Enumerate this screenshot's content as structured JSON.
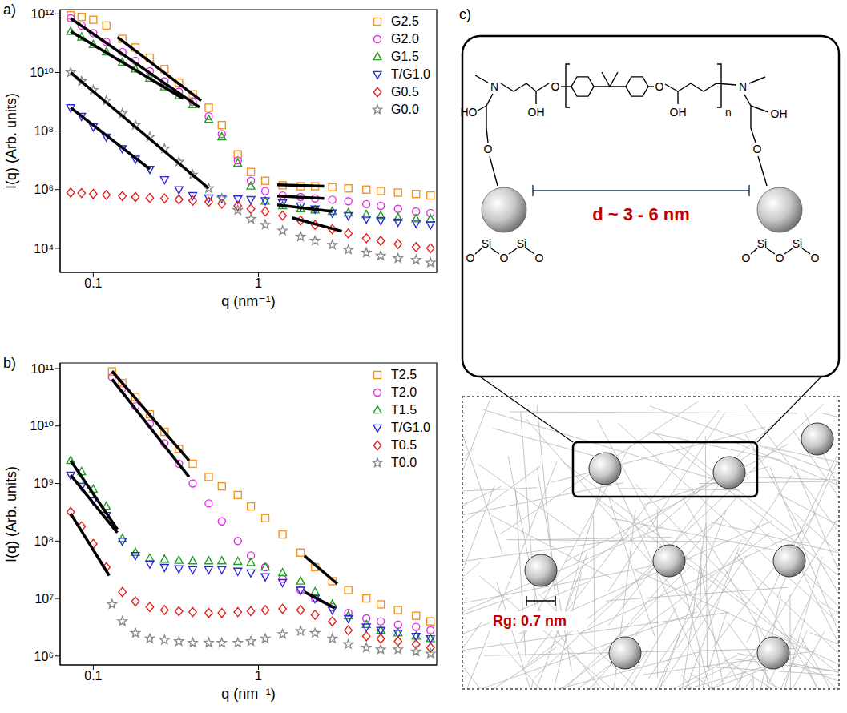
{
  "chart_data": [
    {
      "type": "scatter",
      "label": "a)",
      "x_label": "q (nm⁻¹)",
      "y_label": "I(q) (Arb. units)",
      "log": true,
      "grid": false,
      "legend": "top right",
      "xlim": [
        0.063,
        12
      ],
      "xticks": [
        0.1,
        1
      ],
      "ylim": [
        1500,
        1400000000000.0
      ],
      "yticks": [
        {
          "value": 10000,
          "label": "10⁴"
        },
        {
          "value": 1000000.0,
          "label": "10⁶"
        },
        {
          "value": 100000000.0,
          "label": "10⁸"
        },
        {
          "value": 10000000000.0,
          "label": "10¹⁰"
        },
        {
          "value": 1000000000000.0,
          "label": "10¹²"
        }
      ],
      "series": [
        {
          "name": "G2.5",
          "color": "#f7931e",
          "marker": "square",
          "x": [
            0.073,
            0.085,
            0.1,
            0.12,
            0.15,
            0.18,
            0.22,
            0.27,
            0.33,
            0.4,
            0.5,
            0.6,
            0.75,
            0.9,
            1.1,
            1.4,
            1.8,
            2.2,
            2.8,
            3.5,
            4.5,
            5.5,
            7,
            9,
            11
          ],
          "values": [
            890000000000.0,
            790000000000.0,
            630000000000.0,
            400000000000.0,
            140000000000.0,
            71000000000.0,
            32000000000.0,
            13000000000.0,
            4500000000.0,
            1800000000.0,
            630000000.0,
            160000000.0,
            16000000.0,
            4000000.0,
            2000000.0,
            1400000.0,
            1300000.0,
            1300000.0,
            1200000.0,
            1100000.0,
            1000000.0,
            890000.0,
            790000.0,
            710000.0,
            630000.0
          ],
          "fits": [
            {
              "x": [
                0.14,
                0.45
              ],
              "values": [
                160000000000.0,
                1100000000.0
              ]
            },
            {
              "x": [
                1.3,
                2.5
              ],
              "values": [
                1450000.0,
                1300000.0
              ]
            }
          ]
        },
        {
          "name": "G2.0",
          "color": "#e02ee0",
          "marker": "circle",
          "x": [
            0.073,
            0.085,
            0.1,
            0.12,
            0.15,
            0.18,
            0.22,
            0.27,
            0.33,
            0.4,
            0.5,
            0.6,
            0.75,
            0.9,
            1.1,
            1.4,
            1.8,
            2.2,
            2.8,
            3.5,
            4.5,
            5.5,
            7,
            9,
            11
          ],
          "values": [
            710000000000.0,
            400000000000.0,
            220000000000.0,
            110000000000.0,
            50000000000.0,
            25000000000.0,
            11000000000.0,
            5000000000.0,
            2200000000.0,
            1000000000.0,
            320000000.0,
            79000000.0,
            10000000.0,
            2000000.0,
            890000.0,
            630000.0,
            560000.0,
            500000.0,
            450000.0,
            400000.0,
            320000.0,
            280000.0,
            220000.0,
            180000.0,
            160000.0
          ],
          "fits": [
            {
              "x": [
                0.073,
                0.44
              ],
              "values": [
                700000000000.0,
                650000000.0
              ]
            },
            {
              "x": [
                1.3,
                2.5
              ],
              "values": [
                600000.0,
                500000.0
              ]
            }
          ]
        },
        {
          "name": "G1.5",
          "color": "#1f9e1f",
          "marker": "triangle",
          "x": [
            0.073,
            0.085,
            0.1,
            0.12,
            0.15,
            0.18,
            0.22,
            0.27,
            0.33,
            0.4,
            0.5,
            0.6,
            0.75,
            0.9,
            1.1,
            1.4,
            1.8,
            2.2,
            2.8,
            3.5,
            4.5,
            5.5,
            7,
            9,
            11
          ],
          "values": [
            250000000000.0,
            160000000000.0,
            89000000000.0,
            50000000000.0,
            22000000000.0,
            13000000000.0,
            6300000000.0,
            3200000000.0,
            1600000000.0,
            790000000.0,
            250000000.0,
            63000000.0,
            7900000.0,
            1300000.0,
            400000.0,
            280000.0,
            220000.0,
            200000.0,
            180000.0,
            160000.0,
            140000.0,
            130000.0,
            110000.0,
            100000.0,
            100000.0
          ],
          "fits": [
            {
              "x": [
                0.073,
                0.35
              ],
              "values": [
                250000000000.0,
                1300000000.0
              ]
            },
            {
              "x": [
                1.3,
                2.8
              ],
              "values": [
                300000.0,
                180000.0
              ]
            }
          ]
        },
        {
          "name": "T/G1.0",
          "color": "#2b2bd9",
          "marker": "triangle-down",
          "x": [
            0.073,
            0.085,
            0.1,
            0.12,
            0.15,
            0.18,
            0.22,
            0.27,
            0.33,
            0.4,
            0.5,
            0.6,
            0.75,
            0.9,
            1.1,
            1.4,
            1.8,
            2.2,
            2.8,
            3.5,
            4.5,
            5.5,
            7,
            9,
            11
          ],
          "values": [
            630000000.0,
            320000000.0,
            140000000.0,
            63000000.0,
            25000000.0,
            11000000.0,
            5000000.0,
            2200000.0,
            1000000.0,
            630000.0,
            520000.0,
            500000.0,
            480000.0,
            460000.0,
            420000.0,
            350000.0,
            280000.0,
            220000.0,
            160000.0,
            130000.0,
            100000.0,
            89000.0,
            79000.0,
            71000.0,
            63000.0
          ],
          "fits": [
            {
              "x": [
                0.073,
                0.22
              ],
              "values": [
                630000000.0,
                5000000.0
              ]
            }
          ]
        },
        {
          "name": "G0.5",
          "color": "#e3211c",
          "marker": "diamond",
          "x": [
            0.073,
            0.085,
            0.1,
            0.12,
            0.15,
            0.18,
            0.22,
            0.27,
            0.33,
            0.4,
            0.5,
            0.6,
            0.75,
            0.9,
            1.1,
            1.4,
            1.8,
            2.2,
            2.8,
            3.5,
            4.5,
            5.5,
            7,
            9,
            11
          ],
          "values": [
            790000.0,
            760000.0,
            710000.0,
            660000.0,
            600000.0,
            560000.0,
            520000.0,
            500000.0,
            460000.0,
            420000.0,
            380000.0,
            330000.0,
            280000.0,
            220000.0,
            180000.0,
            130000.0,
            89000.0,
            63000.0,
            45000.0,
            32000.0,
            22000.0,
            18000.0,
            14000.0,
            11000.0,
            10000.0
          ],
          "fits": [
            {
              "x": [
                1.6,
                3.2
              ],
              "values": [
                110000.0,
                38000.0
              ]
            }
          ]
        },
        {
          "name": "G0.0",
          "color": "#8a8a8a",
          "marker": "star",
          "x": [
            0.073,
            0.085,
            0.1,
            0.12,
            0.15,
            0.18,
            0.22,
            0.27,
            0.33,
            0.4,
            0.5,
            0.6,
            0.75,
            0.9,
            1.1,
            1.4,
            1.8,
            2.2,
            2.8,
            3.5,
            4.5,
            5.5,
            7,
            9,
            11
          ],
          "values": [
            10000000000.0,
            5000000000.0,
            2500000000.0,
            1100000000.0,
            400000000.0,
            160000000.0,
            63000000.0,
            25000000.0,
            8900000.0,
            3200000.0,
            1100000.0,
            500000.0,
            200000.0,
            100000.0,
            63000.0,
            40000.0,
            25000.0,
            18000.0,
            13000.0,
            8900.0,
            7100.0,
            5600.0,
            4500.0,
            4000.0,
            3200.0
          ],
          "fits": [
            {
              "x": [
                0.073,
                0.5
              ],
              "values": [
                10000000000.0,
                1100000.0
              ]
            }
          ]
        }
      ]
    },
    {
      "type": "scatter",
      "label": "b)",
      "x_label": "q (nm⁻¹)",
      "y_label": "I(q) (Arb. units)",
      "log": true,
      "grid": false,
      "legend": "top right",
      "xlim": [
        0.063,
        12
      ],
      "xticks": [
        0.1,
        1
      ],
      "ylim": [
        700000.0,
        125000000000.0
      ],
      "yticks": [
        {
          "value": 1000000.0,
          "label": "10⁶"
        },
        {
          "value": 10000000.0,
          "label": "10⁷"
        },
        {
          "value": 100000000.0,
          "label": "10⁸"
        },
        {
          "value": 1000000000.0,
          "label": "10⁹"
        },
        {
          "value": 10000000000.0,
          "label": "10¹⁰"
        },
        {
          "value": 100000000000.0,
          "label": "10¹¹"
        }
      ],
      "series": [
        {
          "name": "T2.5",
          "color": "#f7931e",
          "marker": "square",
          "x": [
            0.13,
            0.15,
            0.18,
            0.22,
            0.27,
            0.33,
            0.4,
            0.5,
            0.6,
            0.75,
            0.9,
            1.1,
            1.4,
            1.8,
            2.2,
            2.8,
            3.5,
            4.5,
            5.5,
            7,
            9,
            11
          ],
          "values": [
            89000000000.0,
            56000000000.0,
            32000000000.0,
            16000000000.0,
            7900000000.0,
            4000000000.0,
            2200000000.0,
            1300000000.0,
            890000000.0,
            630000000.0,
            400000000.0,
            250000000.0,
            130000000.0,
            63000000.0,
            35000000.0,
            20000000.0,
            14000000.0,
            10000000.0,
            7900000.0,
            6300000.0,
            5000000.0,
            4000000.0
          ],
          "fits": [
            {
              "x": [
                0.13,
                0.38
              ],
              "values": [
                90000000000.0,
                2500000000.0
              ]
            },
            {
              "x": [
                1.9,
                3
              ],
              "values": [
                55000000.0,
                18000000.0
              ]
            }
          ]
        },
        {
          "name": "T2.0",
          "color": "#e02ee0",
          "marker": "circle",
          "x": [
            0.13,
            0.15,
            0.18,
            0.22,
            0.27,
            0.33,
            0.4,
            0.5,
            0.6,
            0.75,
            0.9,
            1.1,
            1.4,
            1.8,
            2.2,
            2.8,
            3.5,
            4.5,
            5.5,
            7,
            9,
            11
          ],
          "values": [
            71000000000.0,
            45000000000.0,
            22000000000.0,
            11000000000.0,
            5000000000.0,
            2200000000.0,
            1000000000.0,
            450000000.0,
            220000000.0,
            100000000.0,
            56000000.0,
            35000000.0,
            22000000.0,
            14000000.0,
            10000000.0,
            7100000.0,
            5600000.0,
            4500000.0,
            4000000.0,
            3500000.0,
            3200000.0,
            2800000.0
          ],
          "fits": [
            {
              "x": [
                0.13,
                0.38
              ],
              "values": [
                65000000000.0,
                1300000000.0
              ]
            },
            {
              "x": [
                1.9,
                2.9
              ],
              "values": [
                13000000.0,
                6800000.0
              ]
            }
          ]
        },
        {
          "name": "T1.5",
          "color": "#1f9e1f",
          "marker": "triangle",
          "x": [
            0.073,
            0.085,
            0.1,
            0.12,
            0.15,
            0.18,
            0.22,
            0.27,
            0.33,
            0.4,
            0.5,
            0.6,
            0.75,
            0.9,
            1.1,
            1.4,
            1.8,
            2.2,
            2.8,
            3.5,
            4.5,
            5.5,
            7,
            9,
            11
          ],
          "values": [
            2500000000.0,
            1600000000.0,
            790000000.0,
            400000000.0,
            110000000.0,
            63000000.0,
            50000000.0,
            48000000.0,
            46000000.0,
            45000000.0,
            45000000.0,
            45000000.0,
            44000000.0,
            42000000.0,
            35000000.0,
            28000000.0,
            20000000.0,
            13000000.0,
            7900000.0,
            5000000.0,
            3500000.0,
            2800000.0,
            2500000.0,
            2200000.0,
            2000000.0
          ],
          "fits": [
            {
              "x": [
                0.073,
                0.14
              ],
              "values": [
                2500000000.0,
                160000000.0
              ]
            }
          ]
        },
        {
          "name": "T/G1.0",
          "color": "#2b2bd9",
          "marker": "triangle-down",
          "x": [
            0.073,
            0.085,
            0.1,
            0.12,
            0.15,
            0.18,
            0.22,
            0.27,
            0.33,
            0.4,
            0.5,
            0.6,
            0.75,
            0.9,
            1.1,
            1.4,
            1.8,
            2.2,
            2.8,
            3.5,
            4.5,
            5.5,
            7,
            9,
            11
          ],
          "values": [
            1400000000.0,
            890000000.0,
            500000000.0,
            280000000.0,
            100000000.0,
            56000000.0,
            40000000.0,
            35000000.0,
            33000000.0,
            32000000.0,
            32000000.0,
            32000000.0,
            30000000.0,
            28000000.0,
            24000000.0,
            19000000.0,
            14000000.0,
            10000000.0,
            6300000.0,
            4500000.0,
            3200000.0,
            2800000.0,
            2500000.0,
            2200000.0,
            2000000.0
          ],
          "fits": [
            {
              "x": [
                0.073,
                0.14
              ],
              "values": [
                1400000000.0,
                140000000.0
              ]
            }
          ]
        },
        {
          "name": "T0.5",
          "color": "#e3211c",
          "marker": "diamond",
          "x": [
            0.073,
            0.085,
            0.1,
            0.12,
            0.15,
            0.18,
            0.22,
            0.27,
            0.33,
            0.4,
            0.5,
            0.6,
            0.75,
            0.9,
            1.1,
            1.4,
            1.8,
            2.2,
            2.8,
            3.5,
            4.5,
            5.5,
            7,
            9,
            11
          ],
          "values": [
            320000000.0,
            180000000.0,
            89000000.0,
            35000000.0,
            13000000.0,
            8900000.0,
            7100000.0,
            6300000.0,
            6000000.0,
            5800000.0,
            5600000.0,
            5600000.0,
            5800000.0,
            6000000.0,
            6300000.0,
            6600000.0,
            6300000.0,
            5200000.0,
            4000000.0,
            2800000.0,
            2200000.0,
            2000000.0,
            1800000.0,
            1600000.0,
            1400000.0
          ],
          "fits": [
            {
              "x": [
                0.073,
                0.125
              ],
              "values": [
                300000000.0,
                25000000.0
              ]
            }
          ]
        },
        {
          "name": "T0.0",
          "color": "#8a8a8a",
          "marker": "star",
          "x": [
            0.13,
            0.15,
            0.18,
            0.22,
            0.27,
            0.33,
            0.4,
            0.5,
            0.6,
            0.75,
            0.9,
            1.1,
            1.4,
            1.8,
            2.2,
            2.8,
            3.5,
            4.5,
            5.5,
            7,
            9,
            11
          ],
          "values": [
            7900000.0,
            4000000.0,
            2500000.0,
            2000000.0,
            1900000.0,
            1800000.0,
            1700000.0,
            1700000.0,
            1700000.0,
            1700000.0,
            1800000.0,
            2000000.0,
            2400000.0,
            2700000.0,
            2500000.0,
            2000000.0,
            1600000.0,
            1400000.0,
            1300000.0,
            1300000.0,
            1200000.0,
            1100000.0
          ]
        }
      ]
    }
  ],
  "diagram": {
    "label": "c)",
    "distance_label": "d ~ 3 - 6 nm",
    "rg_label": "Rg: 0.7 nm",
    "structure_labels": [
      "N",
      "HO",
      "O",
      "OH",
      "O",
      "O",
      "OH",
      "n",
      "N",
      "OH",
      "O",
      "Si",
      "Si",
      "O",
      "O",
      "O",
      "Si",
      "Si",
      "O",
      "O",
      "O"
    ]
  }
}
